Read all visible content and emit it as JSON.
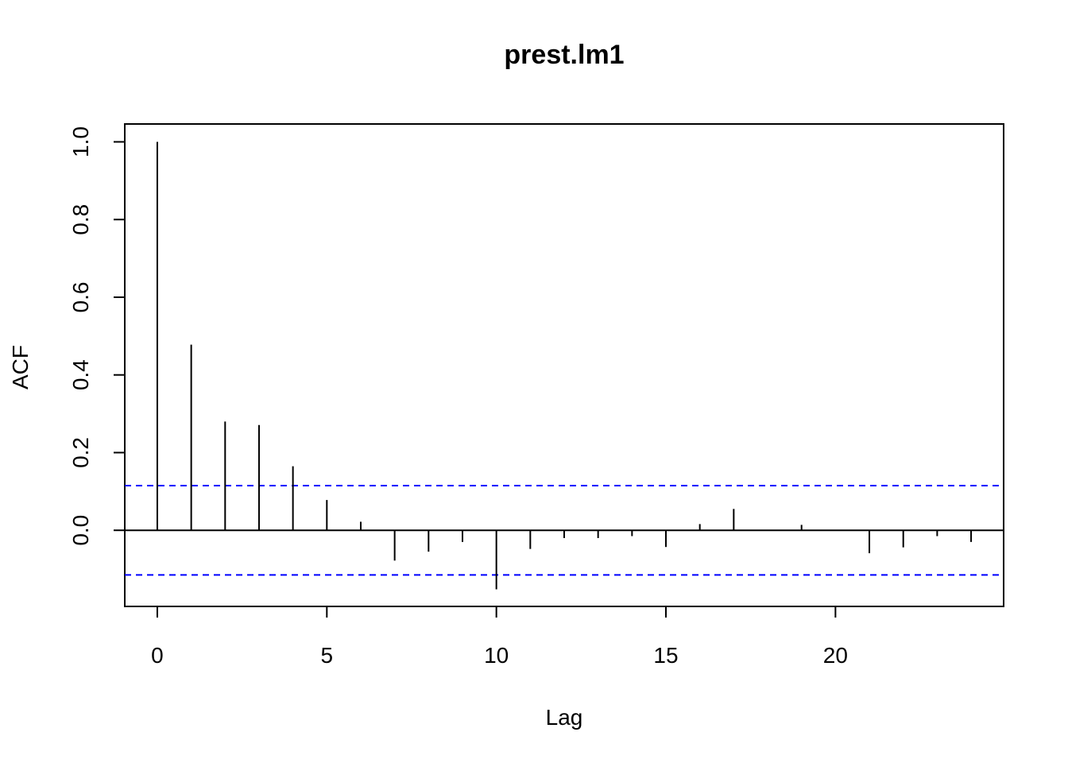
{
  "chart_data": {
    "type": "bar",
    "title": "prest.lm1",
    "xlabel": "Lag",
    "ylabel": "ACF",
    "x": [
      0,
      1,
      2,
      3,
      4,
      5,
      6,
      7,
      8,
      9,
      10,
      11,
      12,
      13,
      14,
      15,
      16,
      17,
      18,
      19,
      20,
      21,
      22,
      23,
      24
    ],
    "values": [
      1.0,
      0.478,
      0.28,
      0.271,
      0.165,
      0.078,
      0.022,
      -0.078,
      -0.055,
      -0.03,
      -0.152,
      -0.048,
      -0.02,
      -0.02,
      -0.015,
      -0.043,
      0.016,
      0.055,
      0.0,
      0.014,
      0.0,
      -0.059,
      -0.044,
      -0.015,
      -0.03
    ],
    "confidence_bound": 0.115,
    "xlim": [
      -0.96,
      24.96
    ],
    "ylim": [
      -0.196,
      1.046
    ],
    "x_ticks": [
      0,
      5,
      10,
      15,
      20
    ],
    "x_tick_labels": [
      "0",
      "5",
      "10",
      "15",
      "20"
    ],
    "y_ticks": [
      0.0,
      0.2,
      0.4,
      0.6,
      0.8,
      1.0
    ],
    "y_tick_labels": [
      "0.0",
      "0.2",
      "0.4",
      "0.6",
      "0.8",
      "1.0"
    ],
    "grid": false,
    "colors": {
      "bars": "#000000",
      "confidence": "#0000ff",
      "zero_line": "#000000",
      "frame": "#000000"
    }
  }
}
